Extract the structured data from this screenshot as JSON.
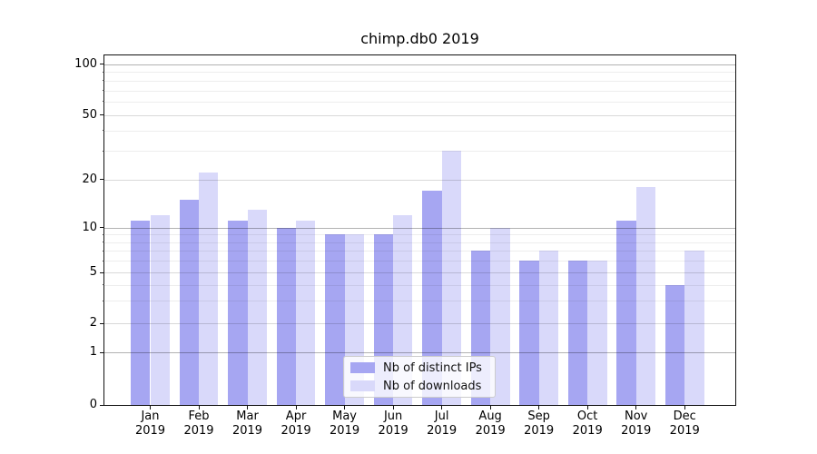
{
  "chart_data": {
    "type": "bar",
    "title": "chimp.db0 2019",
    "categories": [
      "Jan",
      "Feb",
      "Mar",
      "Apr",
      "May",
      "Jun",
      "Jul",
      "Aug",
      "Sep",
      "Oct",
      "Nov",
      "Dec"
    ],
    "category_year": "2019",
    "series": [
      {
        "name": "Nb of distinct IPs",
        "color": "#a6a6f2",
        "values": [
          11,
          15,
          11,
          10,
          9,
          9,
          17,
          7,
          6,
          6,
          11,
          4
        ]
      },
      {
        "name": "Nb of downloads",
        "color": "#d9d9fa",
        "values": [
          12,
          22,
          13,
          11,
          9,
          12,
          30,
          10,
          7,
          6,
          18,
          7
        ]
      }
    ],
    "y_axis": {
      "scale": "symlog",
      "tick_labels": [
        "0",
        "1",
        "2",
        "5",
        "10",
        "20",
        "50",
        "100"
      ],
      "tick_values": [
        0,
        1,
        2,
        5,
        10,
        20,
        50,
        100
      ],
      "major_gridlines": [
        1,
        10,
        100
      ],
      "labeled_minor_gridlines": [
        2,
        5,
        20,
        50
      ],
      "minor_gridlines": [
        3,
        4,
        6,
        7,
        8,
        9,
        30,
        40,
        60,
        70,
        80,
        90
      ],
      "ylim": [
        0,
        110
      ]
    },
    "x_axis": {
      "label_format": "month over year"
    },
    "legend": {
      "position": "lower center",
      "entries": [
        "Nb of distinct IPs",
        "Nb of downloads"
      ]
    },
    "grid": "horizontal only, drawn above bars",
    "background_color": "#ffffff"
  }
}
